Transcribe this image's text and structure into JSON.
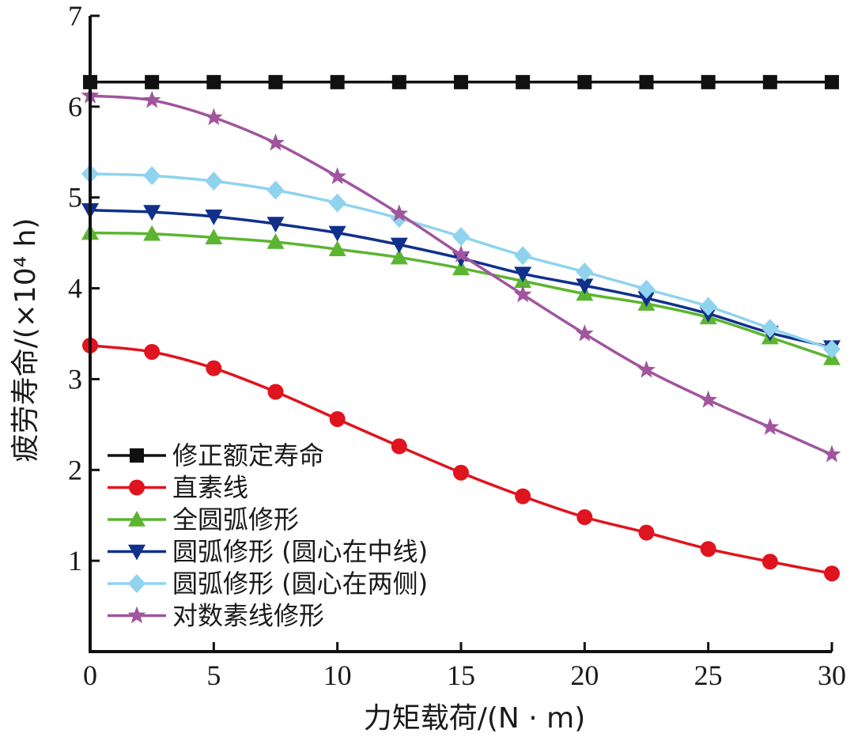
{
  "chart_data": {
    "type": "line",
    "title": "",
    "xlabel": "力矩载荷/(N · m)",
    "ylabel": "疲劳寿命/(×10⁴ h)",
    "xlim": [
      0,
      30
    ],
    "ylim": [
      0,
      7
    ],
    "xticks": [
      0,
      5,
      10,
      15,
      20,
      25,
      30
    ],
    "yticks": [
      1,
      2,
      3,
      4,
      5,
      6,
      7
    ],
    "x": [
      0,
      2.5,
      5,
      7.5,
      10,
      12.5,
      15,
      17.5,
      20,
      22.5,
      25,
      27.5,
      30
    ],
    "legend_position": "lower-left",
    "series": [
      {
        "name": "修正额定寿命",
        "color": "#111111",
        "marker": "square",
        "values": [
          6.27,
          6.27,
          6.27,
          6.27,
          6.27,
          6.27,
          6.27,
          6.27,
          6.27,
          6.27,
          6.27,
          6.27,
          6.27
        ]
      },
      {
        "name": "直素线",
        "color": "#e0141e",
        "marker": "circle",
        "values": [
          3.37,
          3.3,
          3.12,
          2.86,
          2.56,
          2.26,
          1.97,
          1.71,
          1.48,
          1.31,
          1.13,
          0.99,
          0.86
        ]
      },
      {
        "name": "全圆弧修形",
        "color": "#5cb531",
        "marker": "triangle-up",
        "values": [
          4.61,
          4.6,
          4.56,
          4.51,
          4.43,
          4.34,
          4.22,
          4.08,
          3.94,
          3.83,
          3.68,
          3.46,
          3.23
        ]
      },
      {
        "name": "圆弧修形 (圆心在中线)",
        "color": "#10308a",
        "marker": "triangle-down",
        "values": [
          4.86,
          4.84,
          4.79,
          4.71,
          4.61,
          4.48,
          4.33,
          4.16,
          4.03,
          3.89,
          3.72,
          3.51,
          3.35
        ]
      },
      {
        "name": "圆弧修形 (圆心在两侧)",
        "color": "#8fd3ef",
        "marker": "diamond",
        "values": [
          5.26,
          5.24,
          5.18,
          5.08,
          4.94,
          4.77,
          4.57,
          4.36,
          4.18,
          3.99,
          3.8,
          3.56,
          3.33
        ]
      },
      {
        "name": "对数素线修形",
        "color": "#a0559e",
        "marker": "star",
        "values": [
          6.12,
          6.07,
          5.88,
          5.6,
          5.23,
          4.82,
          4.37,
          3.93,
          3.5,
          3.1,
          2.77,
          2.47,
          2.17
        ]
      }
    ]
  }
}
